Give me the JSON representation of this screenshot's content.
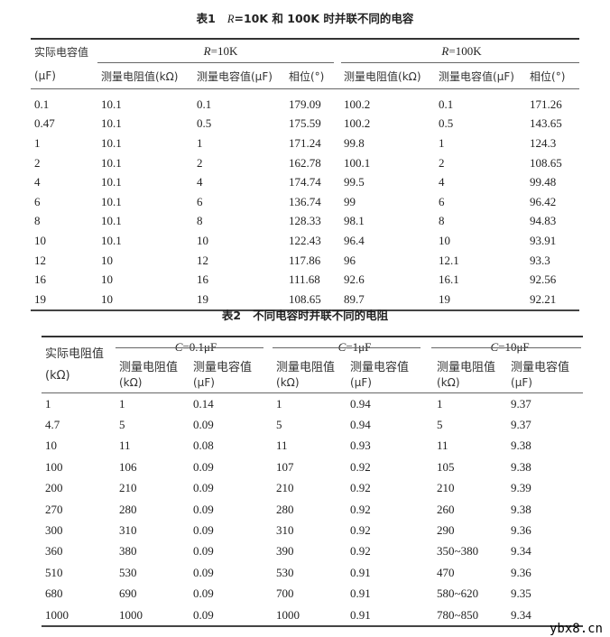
{
  "table1": {
    "caption_prefix": "表1",
    "caption_var": "R",
    "caption_text": "=10K 和 100K 时并联不同的电容",
    "col0_header_line1": "实际电容值",
    "col0_header_line2": "(μF)",
    "groups": [
      {
        "var": "R",
        "value": "=10K"
      },
      {
        "var": "R",
        "value": "=100K"
      }
    ],
    "subheaders": [
      "测量电阻值(kΩ)",
      "测量电容值(μF)",
      "相位(°)",
      "测量电阻值(kΩ)",
      "测量电容值(μF)",
      "相位(°)"
    ],
    "rows": [
      [
        "0.1",
        "10.1",
        "0.1",
        "179.09",
        "100.2",
        "0.1",
        "171.26"
      ],
      [
        "0.47",
        "10.1",
        "0.5",
        "175.59",
        "100.2",
        "0.5",
        "143.65"
      ],
      [
        "1",
        "10.1",
        "1",
        "171.24",
        "99.8",
        "1",
        "124.3"
      ],
      [
        "2",
        "10.1",
        "2",
        "162.78",
        "100.1",
        "2",
        "108.65"
      ],
      [
        "4",
        "10.1",
        "4",
        "174.74",
        "99.5",
        "4",
        "99.48"
      ],
      [
        "6",
        "10.1",
        "6",
        "136.74",
        "99",
        "6",
        "96.42"
      ],
      [
        "8",
        "10.1",
        "8",
        "128.33",
        "98.1",
        "8",
        "94.83"
      ],
      [
        "10",
        "10.1",
        "10",
        "122.43",
        "96.4",
        "10",
        "93.91"
      ],
      [
        "12",
        "10",
        "12",
        "117.86",
        "96",
        "12.1",
        "93.3"
      ],
      [
        "16",
        "10",
        "16",
        "111.68",
        "92.6",
        "16.1",
        "92.56"
      ],
      [
        "19",
        "10",
        "19",
        "108.65",
        "89.7",
        "19",
        "92.21"
      ]
    ]
  },
  "table2": {
    "caption_prefix": "表2",
    "caption_text": "不同电容时并联不同的电阻",
    "col0_header_line1": "实际电阻值",
    "col0_header_line2": "(kΩ)",
    "groups": [
      {
        "var": "C",
        "value": "=0.1μF"
      },
      {
        "var": "C",
        "value": "=1μF"
      },
      {
        "var": "C",
        "value": "=10μF"
      }
    ],
    "subheaders_line1": [
      "测量电阻值",
      "测量电容值",
      "测量电阻值",
      "测量电容值",
      "测量电阻值",
      "测量电容值"
    ],
    "subheaders_line2": [
      "(kΩ)",
      "(μF)",
      "(kΩ)",
      "(μF)",
      "(kΩ)",
      "(μF)"
    ],
    "rows": [
      [
        "1",
        "1",
        "0.14",
        "1",
        "0.94",
        "1",
        "9.37"
      ],
      [
        "4.7",
        "5",
        "0.09",
        "5",
        "0.94",
        "5",
        "9.37"
      ],
      [
        "10",
        "11",
        "0.08",
        "11",
        "0.93",
        "11",
        "9.38"
      ],
      [
        "100",
        "106",
        "0.09",
        "107",
        "0.92",
        "105",
        "9.38"
      ],
      [
        "200",
        "210",
        "0.09",
        "210",
        "0.92",
        "210",
        "9.39"
      ],
      [
        "270",
        "280",
        "0.09",
        "280",
        "0.92",
        "260",
        "9.38"
      ],
      [
        "300",
        "310",
        "0.09",
        "310",
        "0.92",
        "290",
        "9.36"
      ],
      [
        "360",
        "380",
        "0.09",
        "390",
        "0.92",
        "350~380",
        "9.34"
      ],
      [
        "510",
        "530",
        "0.09",
        "530",
        "0.91",
        "470",
        "9.36"
      ],
      [
        "680",
        "690",
        "0.09",
        "700",
        "0.91",
        "580~620",
        "9.35"
      ],
      [
        "1000",
        "1000",
        "0.09",
        "1000",
        "0.91",
        "780~850",
        "9.34"
      ]
    ]
  },
  "watermark": "ybx8.cn"
}
